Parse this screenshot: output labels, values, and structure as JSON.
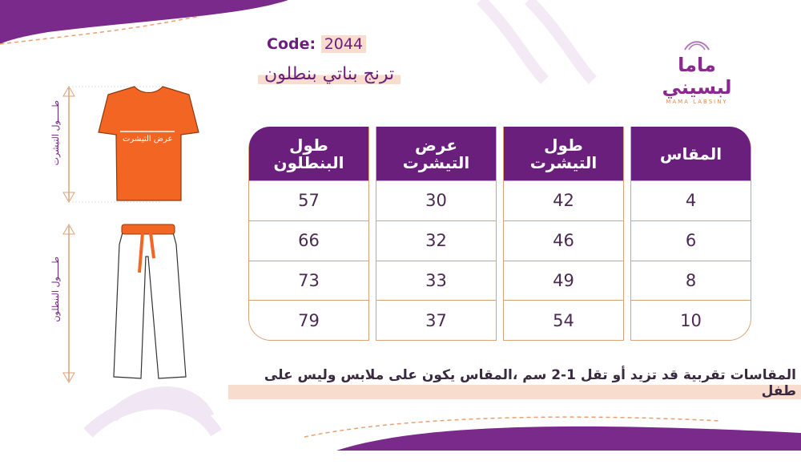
{
  "header": {
    "code_label": "Code:",
    "code_value": "2044",
    "product_title": "ترنج بناتي بنطلون"
  },
  "logo": {
    "arabic": "ماما لبسيني",
    "english": "MAMA LABSINY"
  },
  "illustration": {
    "tshirt_width_label": "عرض التيشرت",
    "tshirt_length_label": "طـــــول التيشرت",
    "pants_length_label": "طـــــول البنطلون"
  },
  "table": {
    "columns": [
      {
        "header": "المقاس",
        "values": [
          "4",
          "6",
          "8",
          "10"
        ]
      },
      {
        "header": "طول التيشرت",
        "values": [
          "42",
          "46",
          "49",
          "54"
        ]
      },
      {
        "header": "عرض التيشرت",
        "values": [
          "30",
          "32",
          "33",
          "37"
        ]
      },
      {
        "header": "طول البنطلون",
        "values": [
          "57",
          "66",
          "73",
          "79"
        ]
      }
    ]
  },
  "note": "المقاسات تقربية قد تزيد أو تقل 1-2 سم ،المقاس يكون على ملابس وليس على طفل",
  "colors": {
    "purple": "#6b1f7c",
    "orange": "#f26522",
    "border": "#d9a27c",
    "highlight": "#f8dccd"
  }
}
